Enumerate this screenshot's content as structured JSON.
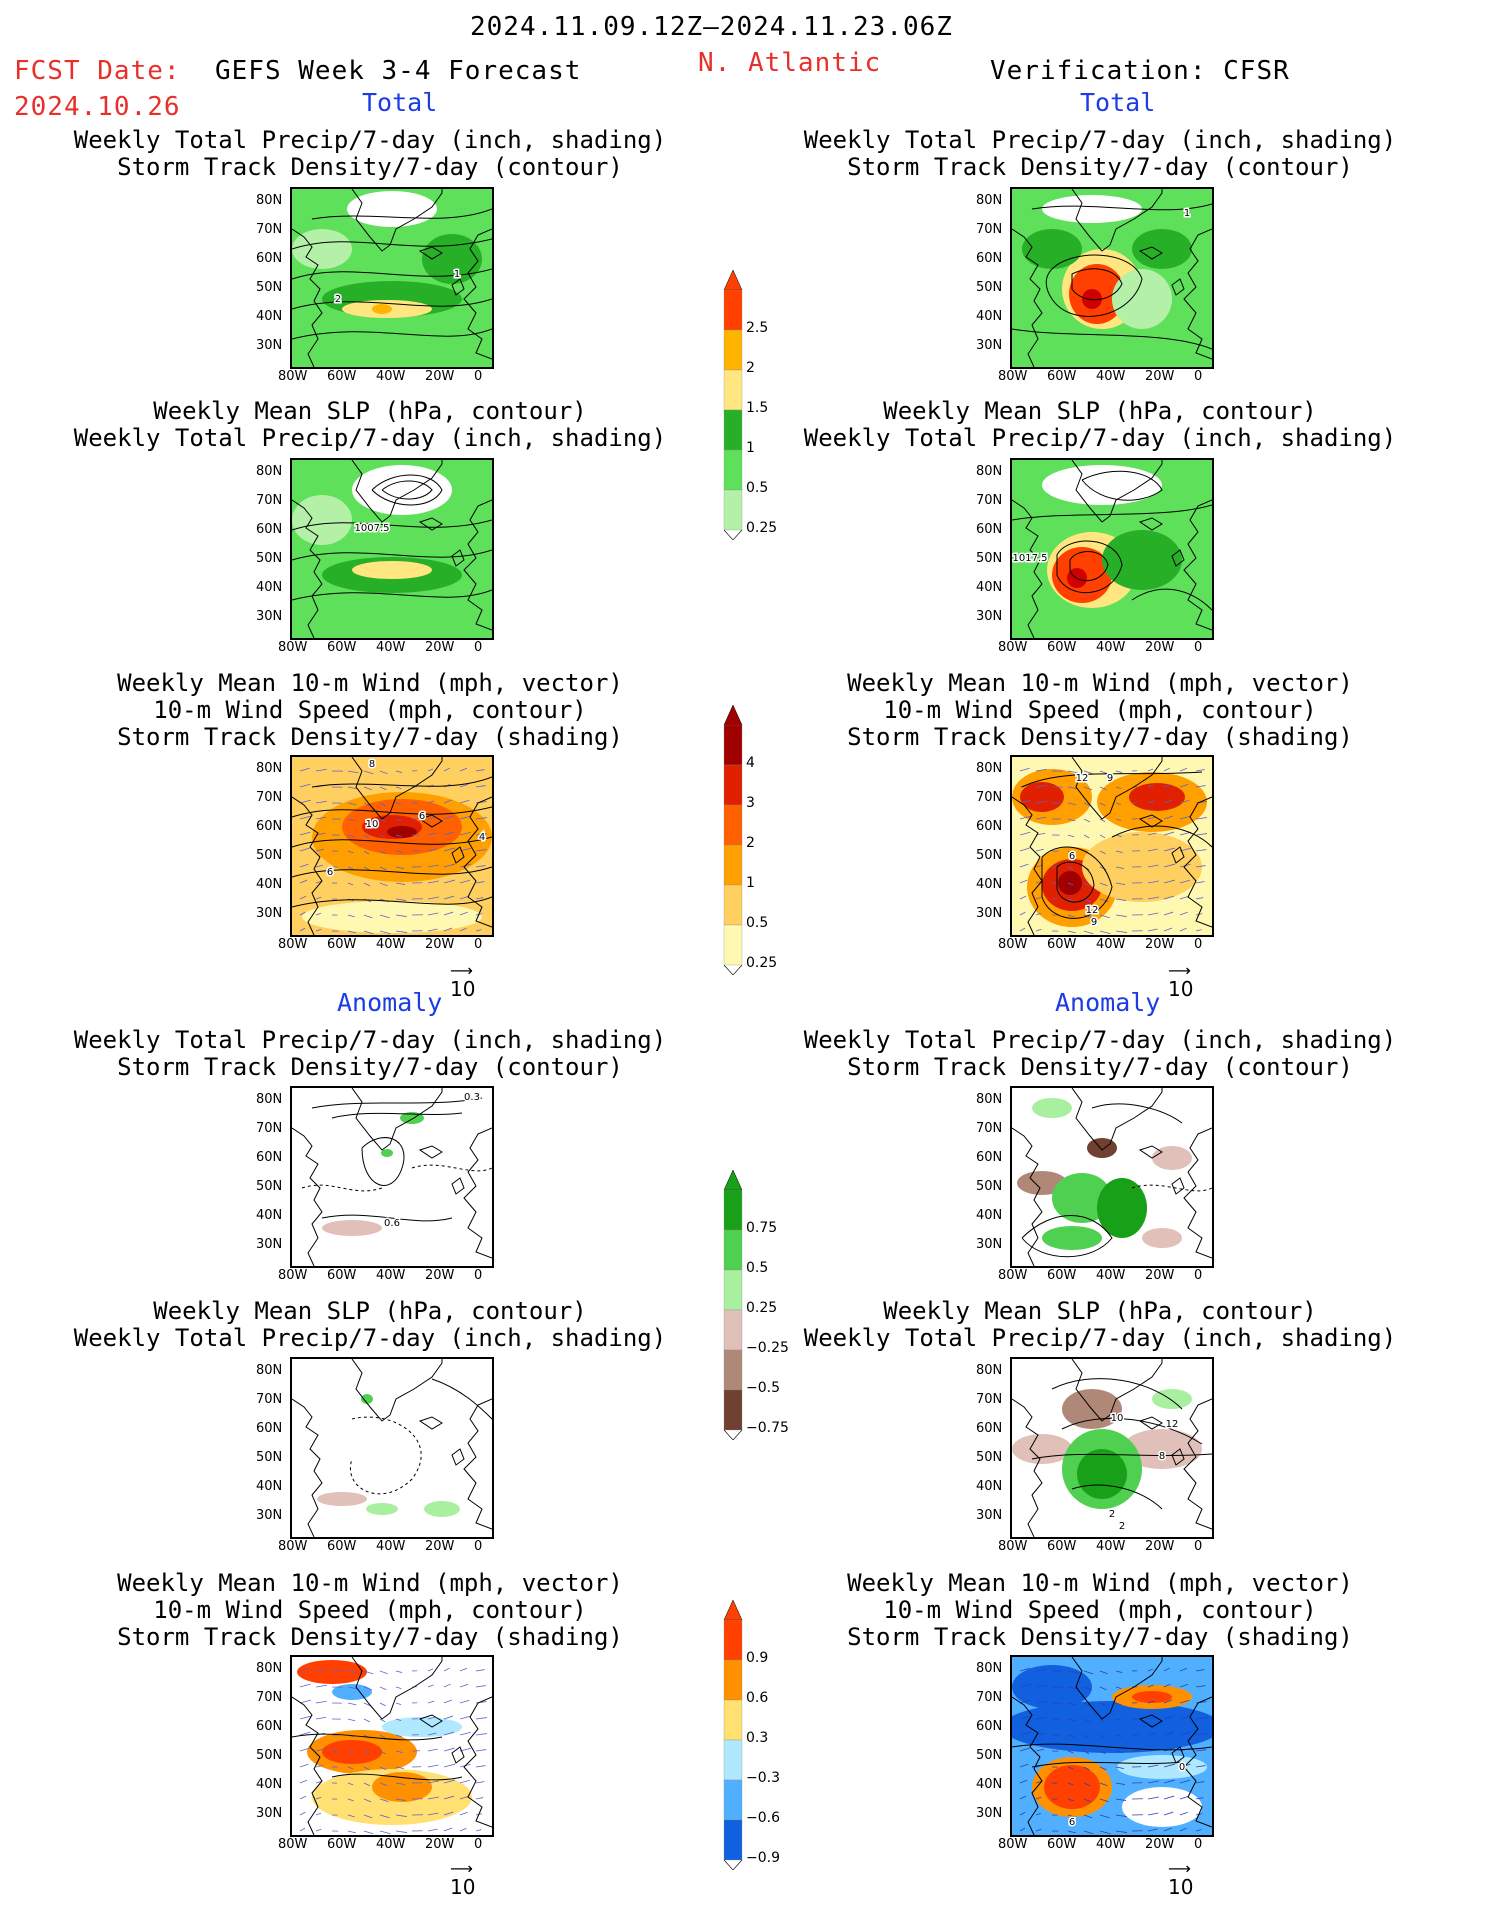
{
  "header": {
    "date_range": "2024.11.09.12Z–2024.11.23.06Z",
    "fcst_label": "FCST Date:",
    "fcst_date": "2024.10.26",
    "product": "GEFS Week 3-4 Forecast",
    "region": "N. Atlantic",
    "verification": "Verification: CFSR"
  },
  "sections": {
    "total": "Total",
    "anomaly": "Anomaly"
  },
  "titles": {
    "precip_track": [
      "Weekly Total Precip/7-day (inch, shading)",
      "Storm Track Density/7-day (contour)"
    ],
    "slp_precip": [
      "Weekly Mean SLP (hPa, contour)",
      "Weekly Total Precip/7-day (inch, shading)"
    ],
    "wind_track": [
      "Weekly Mean 10-m Wind (mph, vector)",
      "10-m Wind Speed (mph, contour)",
      "Storm Track Density/7-day (shading)"
    ]
  },
  "axes": {
    "lat": [
      "80N",
      "70N",
      "60N",
      "50N",
      "40N",
      "30N"
    ],
    "lon": [
      "80W",
      "60W",
      "40W",
      "20W",
      "0"
    ]
  },
  "vector_ref": "10",
  "colorbars": {
    "precip": [
      "2.5",
      "2",
      "1.5",
      "1",
      "0.5",
      "0.25"
    ],
    "track": [
      "4",
      "3",
      "2",
      "1",
      "0.5",
      "0.25"
    ],
    "precip_anom": [
      "0.75",
      "0.5",
      "0.25",
      "−0.25",
      "−0.5",
      "−0.75"
    ],
    "track_anom": [
      "0.9",
      "0.6",
      "0.3",
      "−0.3",
      "−0.6",
      "−0.9"
    ]
  },
  "contour_labels": {
    "p1": [
      "2",
      "1"
    ],
    "p2": [
      "1007.5"
    ],
    "p3": [
      "8",
      "10",
      "6",
      "4",
      "6"
    ],
    "p4": [
      "1"
    ],
    "p5": [
      "1017.5"
    ],
    "p6": [
      "12",
      "9",
      "6",
      "12",
      "9"
    ],
    "p7": [
      "0.3",
      "0.6"
    ],
    "p10": [
      "10",
      "12",
      "8",
      "2"
    ],
    "p11": [
      "2"
    ],
    "p12": [
      "0",
      "6"
    ]
  },
  "colors": {
    "precip": [
      "#b4f0a8",
      "#5ee05a",
      "#27b027",
      "#ffe680",
      "#ffb400",
      "#ff4000",
      "#d00000"
    ],
    "track": [
      "#fff8b0",
      "#ffd060",
      "#ffa000",
      "#ff6000",
      "#e02000",
      "#a00000"
    ],
    "pa_pos": [
      "#a8f0a0",
      "#50d050",
      "#18a018"
    ],
    "pa_neg": [
      "#e0c0b8",
      "#b08878",
      "#704030"
    ],
    "ta_pos": [
      "#ffe070",
      "#ff9000",
      "#ff4000"
    ],
    "ta_neg": [
      "#b0e8ff",
      "#50b0ff",
      "#1060e0"
    ]
  }
}
